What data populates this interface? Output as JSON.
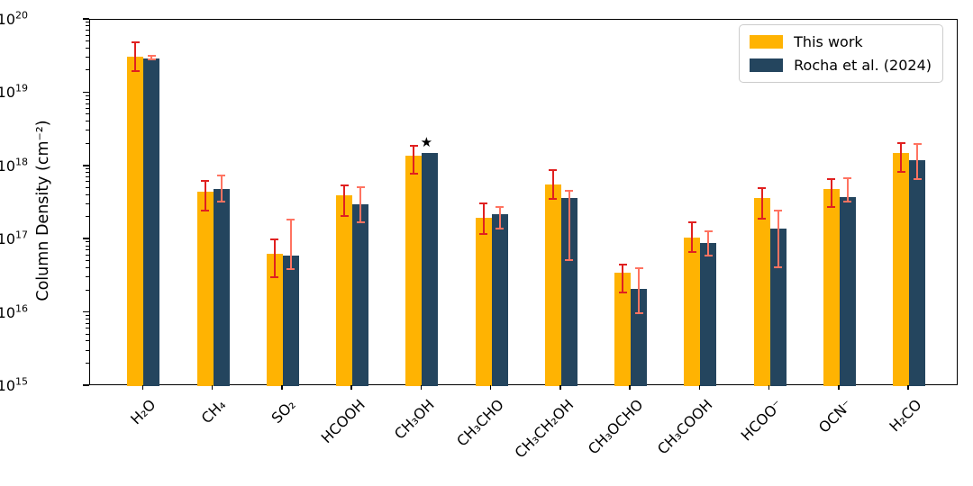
{
  "figure": {
    "background": "#ffffff",
    "axis_color": "#000000"
  },
  "chart_data": {
    "type": "bar",
    "title": "",
    "xlabel": "",
    "ylabel": "Column Density (cm⁻²)",
    "scale_y": "log",
    "ylim": [
      1000000000000000.0,
      1e+20
    ],
    "y_tick_exponents": [
      15,
      16,
      17,
      18,
      19,
      20
    ],
    "grid": false,
    "legend_position": "upper right",
    "categories": [
      "H₂O",
      "CH₄",
      "SO₂",
      "HCOOH",
      "CH₃OH",
      "CH₃CHO",
      "CH₃CH₂OH",
      "CH₃OCHO",
      "CH₃COOH",
      "HCOO⁻",
      "OCN⁻",
      "H₂CO"
    ],
    "series": [
      {
        "name": "This work",
        "color": "#ffb302",
        "error_color": "#e02020",
        "values": [
          3.1e+19,
          4.5e+17,
          6.4e+16,
          4e+17,
          1.4e+18,
          2e+17,
          5.7e+17,
          3.5e+16,
          1.05e+17,
          3.7e+17,
          4.9e+17,
          1.5e+18
        ],
        "err_lo": [
          2e+19,
          2.5e+17,
          3.1e+16,
          2.1e+17,
          7.9e+17,
          1.2e+17,
          3.6e+17,
          1.9e+16,
          6.8e+16,
          1.95e+17,
          2.8e+17,
          8.5e+17
        ],
        "err_hi": [
          5e+19,
          6.3e+17,
          1e+17,
          5.5e+17,
          1.9e+18,
          3.1e+17,
          8.8e+17,
          4.6e+16,
          1.7e+17,
          5.1e+17,
          6.7e+17,
          2.1e+18
        ]
      },
      {
        "name": "Rocha et al. (2024)",
        "color": "#24455e",
        "error_color": "#ff7361",
        "values": [
          3e+19,
          4.9e+17,
          6e+16,
          3e+17,
          1.5e+18,
          2.2e+17,
          3.7e+17,
          2.1e+16,
          9e+16,
          1.4e+17,
          3.8e+17,
          1.2e+18
        ],
        "err_lo": [
          2.9e+19,
          3.3e+17,
          4e+16,
          1.7e+17,
          null,
          1.4e+17,
          5.2e+16,
          1e+16,
          6.1e+16,
          4.2e+16,
          3.3e+17,
          6.6e+17
        ],
        "err_hi": [
          3.2e+19,
          7.4e+17,
          1.9e+17,
          5.2e+17,
          null,
          2.8e+17,
          4.6e+17,
          4.1e+16,
          1.3e+17,
          2.5e+17,
          6.8e+17,
          2e+18
        ]
      }
    ],
    "annotations": [
      {
        "text": "★",
        "category_index": 4,
        "series_index": 1,
        "y": 2.1e+18
      }
    ]
  },
  "legend": {
    "items": [
      {
        "label": "This work",
        "color": "#ffb302"
      },
      {
        "label": "Rocha et al. (2024)",
        "color": "#24455e"
      }
    ]
  }
}
